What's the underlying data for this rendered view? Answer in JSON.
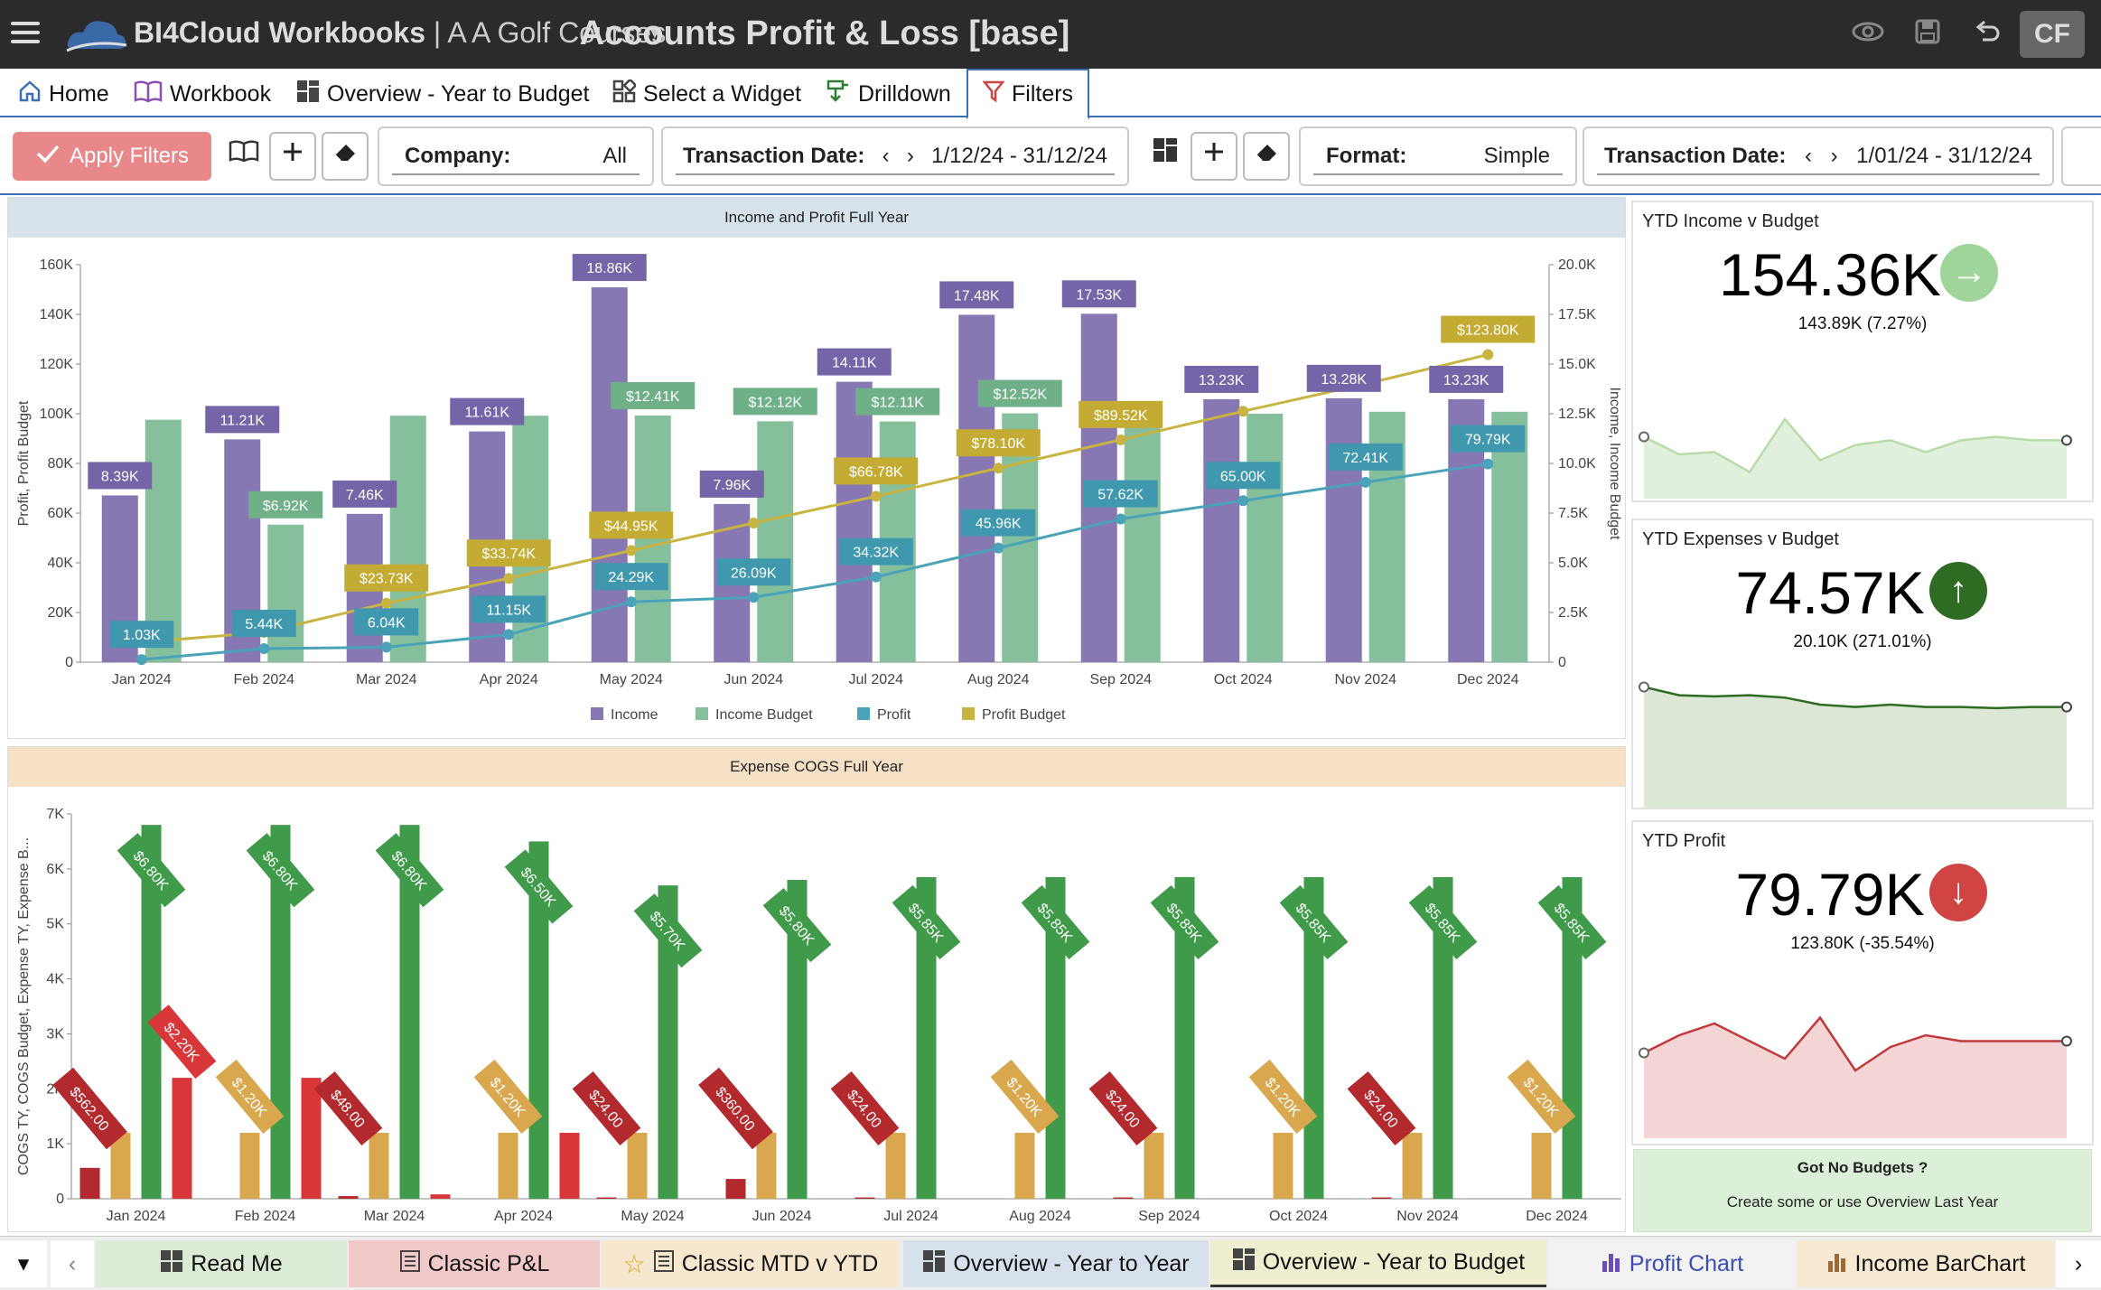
{
  "app": {
    "name": "BI4Cloud Workbooks",
    "separator": " | ",
    "company": "A A Golf Courses",
    "page_title": "Accounts Profit & Loss [base]",
    "user_initials": "CF"
  },
  "nav": {
    "tabs": [
      {
        "label": "Home",
        "icon": "home-icon"
      },
      {
        "label": "Workbook",
        "icon": "book-icon"
      },
      {
        "label": "Overview - Year to Budget",
        "icon": "grid-icon"
      },
      {
        "label": "Select a Widget",
        "icon": "widget-icon"
      },
      {
        "label": "Drilldown",
        "icon": "drilldown-icon"
      },
      {
        "label": "Filters",
        "icon": "filter-icon"
      }
    ]
  },
  "filters": {
    "apply_label": "Apply Filters",
    "company_label": "Company:",
    "company_value": "All",
    "date1_label": "Transaction Date:",
    "date1_value": "1/12/24 - 31/12/24",
    "format_label": "Format:",
    "format_value": "Simple",
    "date2_label": "Transaction Date:",
    "date2_value": "1/01/24 - 31/12/24"
  },
  "chart_data": [
    {
      "type": "bar",
      "title": "Income and Profit Full Year",
      "ylabel": "Profit, Profit Budget",
      "y2label": "Income, Income Budget",
      "ylim": [
        0,
        160000
      ],
      "y2lim": [
        0,
        20000
      ],
      "yticks": [
        "0",
        "20K",
        "40K",
        "60K",
        "80K",
        "100K",
        "120K",
        "140K",
        "160K"
      ],
      "y2ticks": [
        "0",
        "2.5K",
        "5.0K",
        "7.5K",
        "10.0K",
        "12.5K",
        "15.0K",
        "17.5K",
        "20.0K"
      ],
      "categories": [
        "Jan 2024",
        "Feb 2024",
        "Mar 2024",
        "Apr 2024",
        "May 2024",
        "Jun 2024",
        "Jul 2024",
        "Aug 2024",
        "Sep 2024",
        "Oct 2024",
        "Nov 2024",
        "Dec 2024"
      ],
      "series": [
        {
          "name": "Income",
          "kind": "bar",
          "axis": "right",
          "color": "#8777b3",
          "values": [
            8390,
            11210,
            7460,
            11610,
            18860,
            7960,
            14110,
            17480,
            17530,
            13230,
            13280,
            13230
          ],
          "labels": [
            "8.39K",
            "11.21K",
            "7.46K",
            "11.61K",
            "18.86K",
            "7.96K",
            "14.11K",
            "17.48K",
            "17.53K",
            "13.23K",
            "13.28K",
            "13.23K"
          ]
        },
        {
          "name": "Income Budget",
          "kind": "bar",
          "axis": "right",
          "color": "#86bf9c",
          "values": [
            12200,
            6920,
            12400,
            12400,
            12410,
            12120,
            12110,
            12520,
            12000,
            12500,
            12600,
            12600
          ],
          "labels": [
            "",
            "$6.92K",
            "",
            "",
            "$12.41K",
            "$12.12K",
            "$12.11K",
            "$12.52K",
            "",
            "",
            "",
            ""
          ]
        },
        {
          "name": "Profit",
          "kind": "line",
          "axis": "left",
          "color": "#4aa3b8",
          "values": [
            1030,
            5440,
            6040,
            11150,
            24290,
            26090,
            34320,
            45960,
            57620,
            65000,
            72410,
            79790
          ],
          "labels": [
            "1.03K",
            "5.44K",
            "6.04K",
            "11.15K",
            "24.29K",
            "26.09K",
            "34.32K",
            "45.96K",
            "57.62K",
            "65.00K",
            "72.41K",
            "79.79K"
          ]
        },
        {
          "name": "Profit Budget",
          "kind": "line",
          "axis": "left",
          "color": "#c9b341",
          "values": [
            8000,
            12000,
            23730,
            33740,
            44950,
            56000,
            66780,
            78100,
            89520,
            101000,
            112000,
            123800
          ],
          "labels": [
            "",
            "",
            "$23.73K",
            "$33.74K",
            "$44.95K",
            "",
            "$66.78K",
            "$78.10K",
            "$89.52K",
            "",
            "",
            "$123.80K"
          ]
        }
      ]
    },
    {
      "type": "bar",
      "title": "Expense COGS Full Year",
      "ylabel": "COGS TY, COGS Budget, Expense TY, Expense B...",
      "ylim": [
        0,
        7000
      ],
      "yticks": [
        "0",
        "1K",
        "2K",
        "3K",
        "4K",
        "5K",
        "6K",
        "7K"
      ],
      "categories": [
        "Jan 2024",
        "Feb 2024",
        "Mar 2024",
        "Apr 2024",
        "May 2024",
        "Jun 2024",
        "Jul 2024",
        "Aug 2024",
        "Sep 2024",
        "Oct 2024",
        "Nov 2024",
        "Dec 2024"
      ],
      "series": [
        {
          "name": "COGS TY",
          "color": "#b2292e",
          "values": [
            562,
            0,
            48,
            0,
            24,
            360,
            24,
            0,
            24,
            0,
            24,
            0
          ],
          "labels": [
            "$562.00",
            "",
            "$48.00",
            "",
            "$24.00",
            "$360.00",
            "$24.00",
            "",
            "$24.00",
            "",
            "$24.00",
            ""
          ]
        },
        {
          "name": "COGS Budget",
          "color": "#d9a84e",
          "values": [
            1200,
            1200,
            1200,
            1200,
            1200,
            1200,
            1200,
            1200,
            1200,
            1200,
            1200,
            1200
          ],
          "labels": [
            "",
            "$1.20K",
            "",
            "$1.20K",
            "",
            "",
            "",
            "$1.20K",
            "",
            "$1.20K",
            "",
            "$1.20K"
          ]
        },
        {
          "name": "Expense TY",
          "color": "#3f9a49",
          "values": [
            6800,
            6800,
            6800,
            6500,
            5700,
            5800,
            5850,
            5850,
            5850,
            5850,
            5850,
            5850
          ],
          "labels": [
            "$6.80K",
            "$6.80K",
            "$6.80K",
            "$6.50K",
            "$5.70K",
            "$5.80K",
            "$5.85K",
            "$5.85K",
            "$5.85K",
            "$5.85K",
            "$5.85K",
            "$5.85K"
          ]
        },
        {
          "name": "Expense Budget",
          "color": "#d9363a",
          "values": [
            2200,
            2200,
            80,
            1200,
            0,
            0,
            0,
            0,
            0,
            0,
            0,
            0
          ],
          "labels": [
            "$2.20K",
            "",
            "",
            "",
            "",
            "",
            "",
            "",
            "",
            "",
            "",
            ""
          ]
        }
      ]
    }
  ],
  "kpis": [
    {
      "title": "YTD Income v Budget",
      "value": "154.36K",
      "sub": "143.89K (7.27%)",
      "arrow": "→",
      "color": "#9fd49a",
      "fill": "#e1f0dc",
      "line": "#b7dca9",
      "trend": [
        0.55,
        0.7,
        0.68,
        0.85,
        0.4,
        0.75,
        0.62,
        0.58,
        0.68,
        0.58,
        0.55,
        0.58,
        0.58
      ]
    },
    {
      "title": "YTD Expenses v Budget",
      "value": "74.57K",
      "sub": "20.10K (271.01%)",
      "arrow": "↑",
      "color": "#2e6b23",
      "fill": "#dce7d6",
      "line": "#2e6b23",
      "trend": [
        0.05,
        0.12,
        0.13,
        0.12,
        0.14,
        0.2,
        0.22,
        0.2,
        0.22,
        0.22,
        0.23,
        0.22,
        0.22
      ]
    },
    {
      "title": "YTD Profit",
      "value": "79.79K",
      "sub": "123.80K (-35.54%)",
      "arrow": "↓",
      "color": "#d04444",
      "fill": "#f5d4d6",
      "line": "#c0393b",
      "trend": [
        0.35,
        0.2,
        0.1,
        0.25,
        0.4,
        0.05,
        0.5,
        0.3,
        0.2,
        0.25,
        0.25,
        0.25,
        0.25
      ]
    }
  ],
  "nobudget": {
    "title": "Got No Budgets ?",
    "text": "Create some or use Overview Last Year"
  },
  "bottom_tabs": [
    {
      "label": "Read Me",
      "bg": "#dcebd6"
    },
    {
      "label": "Classic P&L",
      "bg": "#f2c9c9"
    },
    {
      "label": "Classic MTD v YTD",
      "bg": "#f8e7cf"
    },
    {
      "label": "Overview - Year to Year",
      "bg": "#d7e1ec"
    },
    {
      "label": "Overview - Year to Budget",
      "bg": "#efeed1"
    },
    {
      "label": "Profit Chart",
      "bg": "#f2f2f2"
    },
    {
      "label": "Income BarChart",
      "bg": "#f7e9d2"
    }
  ]
}
